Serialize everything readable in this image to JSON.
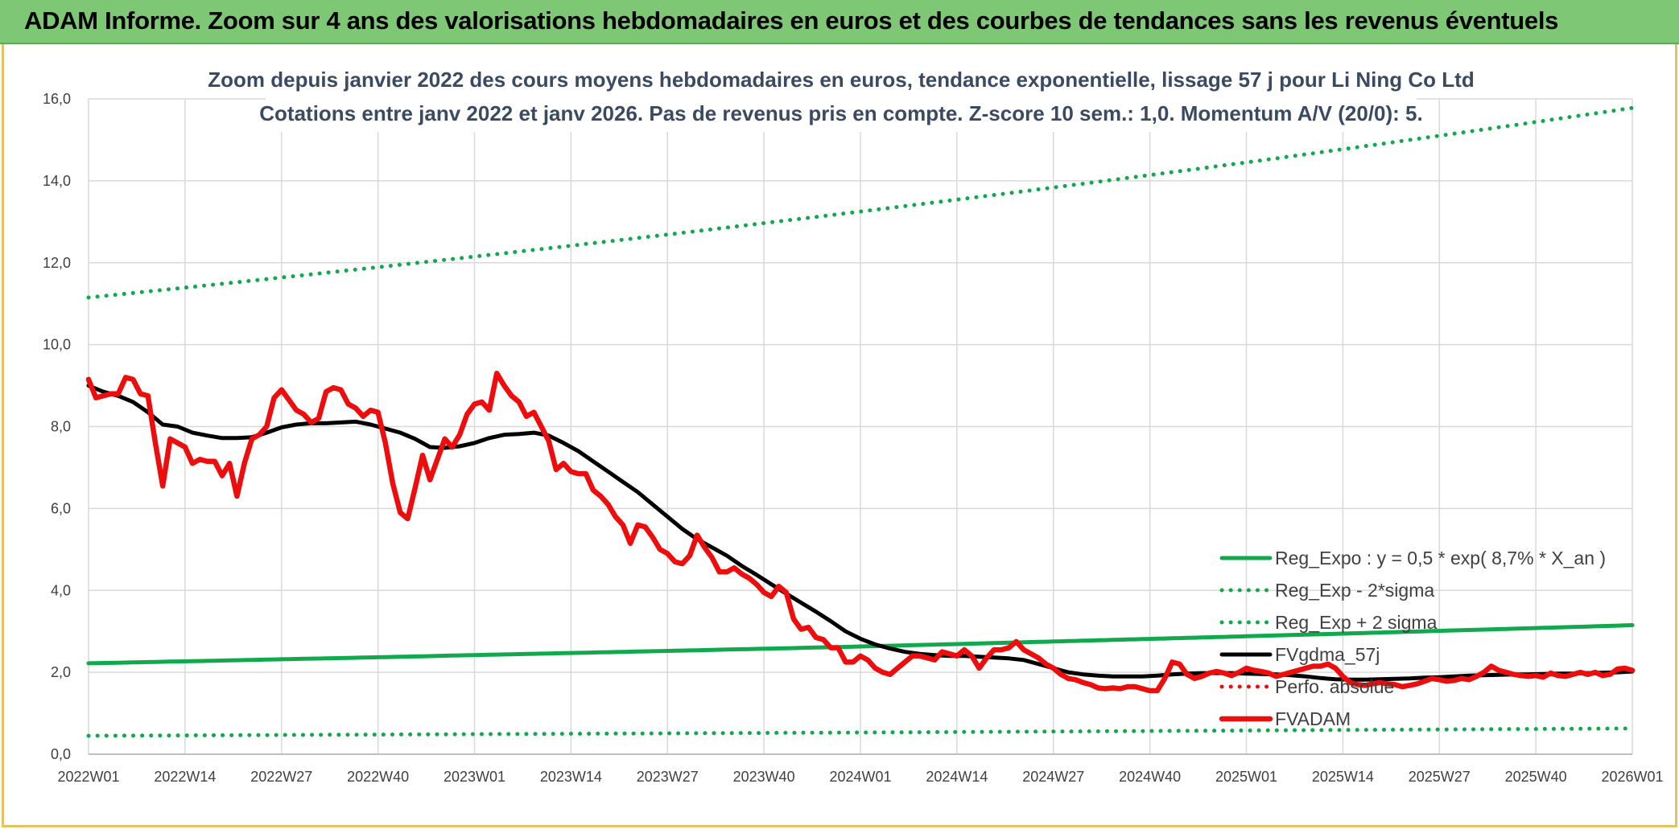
{
  "header": {
    "title": "ADAM Informe. Zoom sur 4 ans des valorisations hebdomadaires en euros et des courbes de tendances sans les revenus éventuels"
  },
  "colors": {
    "banner": "#7dc775",
    "frame": "#e4c262",
    "green": "#11a84e",
    "red": "#ee0d0d",
    "black": "#000000",
    "grid": "#d9d9d9"
  },
  "chart_data": {
    "type": "line",
    "title_line1": "Zoom depuis janvier 2022 des cours moyens hebdomadaires en euros, tendance exponentielle, lissage 57 j pour Li Ning Co Ltd",
    "title_line2": "Cotations entre janv 2022 et janv 2026. Pas de revenus pris en compte. Z-score 10 sem.: 1,0. Momentum A/V (20/0): 5.",
    "xlabel": "",
    "ylabel": "",
    "ylim": [
      0,
      16
    ],
    "yticks": [
      "0,0",
      "2,0",
      "4,0",
      "6,0",
      "8,0",
      "10,0",
      "12,0",
      "14,0",
      "16,0"
    ],
    "x_week_range": [
      0,
      208
    ],
    "x_tick_weeks": [
      0,
      13,
      26,
      39,
      52,
      65,
      78,
      91,
      104,
      117,
      130,
      143,
      156,
      169,
      182,
      195,
      208
    ],
    "x_tick_labels": [
      "2022W01",
      "2022W14",
      "2022W27",
      "2022W40",
      "2023W01",
      "2023W14",
      "2023W27",
      "2023W40",
      "2024W01",
      "2024W14",
      "2024W27",
      "2024W40",
      "2025W01",
      "2025W14",
      "2025W27",
      "2025W40",
      "2026W01"
    ],
    "legend": [
      {
        "label": "Reg_Expo : y = 0,5 * exp( 8,7% *  X_an )",
        "style": "solid",
        "color": "#11a84e"
      },
      {
        "label": "Reg_Exp - 2*sigma",
        "style": "dotted",
        "color": "#11a84e"
      },
      {
        "label": "Reg_Exp + 2 sigma",
        "style": "dotted",
        "color": "#11a84e"
      },
      {
        "label": "FVgdma_57j",
        "style": "solid",
        "color": "#000000"
      },
      {
        "label": "Perfo. absolue",
        "style": "dotted",
        "color": "#ee0d0d"
      },
      {
        "label": "FVADAM",
        "style": "solid-thick",
        "color": "#ee0d0d"
      }
    ],
    "series": [
      {
        "name": "Reg_Expo : y = 0,5 * exp( 8,7% *  X_an )",
        "style": "solid",
        "color": "#11a84e",
        "x": [
          0,
          52,
          104,
          156,
          208
        ],
        "values": [
          2.22,
          2.42,
          2.63,
          2.88,
          3.15
        ]
      },
      {
        "name": "Reg_Exp - 2*sigma",
        "style": "dotted",
        "color": "#11a84e",
        "x": [
          0,
          52,
          104,
          156,
          208
        ],
        "values": [
          0.45,
          0.49,
          0.53,
          0.58,
          0.63
        ]
      },
      {
        "name": "Reg_Exp + 2 sigma",
        "style": "dotted",
        "color": "#11a84e",
        "x": [
          0,
          52,
          104,
          156,
          208
        ],
        "values": [
          11.15,
          12.15,
          13.25,
          14.45,
          15.78
        ]
      },
      {
        "name": "FVgdma_57j",
        "style": "solid",
        "color": "#000000",
        "x": [
          0,
          2,
          4,
          6,
          8,
          10,
          12,
          14,
          16,
          18,
          20,
          22,
          24,
          26,
          28,
          30,
          32,
          34,
          36,
          38,
          40,
          42,
          44,
          46,
          48,
          50,
          52,
          54,
          56,
          58,
          60,
          62,
          64,
          66,
          68,
          70,
          72,
          74,
          76,
          78,
          80,
          82,
          84,
          86,
          88,
          90,
          92,
          94,
          96,
          98,
          100,
          102,
          104,
          106,
          108,
          110,
          112,
          114,
          116,
          118,
          120,
          122,
          124,
          126,
          128,
          130,
          132,
          134,
          136,
          138,
          140,
          142,
          144,
          146,
          148,
          150,
          152,
          154,
          156,
          158,
          160,
          162,
          164,
          166,
          168,
          170,
          172,
          174,
          176,
          178,
          180,
          182,
          184,
          186,
          188,
          190,
          192,
          194,
          196,
          198,
          200,
          202,
          204,
          206,
          208
        ],
        "values": [
          9.0,
          8.85,
          8.75,
          8.6,
          8.35,
          8.05,
          8.0,
          7.85,
          7.78,
          7.72,
          7.72,
          7.74,
          7.85,
          7.98,
          8.05,
          8.08,
          8.08,
          8.1,
          8.12,
          8.05,
          7.95,
          7.85,
          7.7,
          7.5,
          7.48,
          7.52,
          7.6,
          7.72,
          7.8,
          7.82,
          7.85,
          7.78,
          7.6,
          7.4,
          7.15,
          6.9,
          6.65,
          6.4,
          6.1,
          5.8,
          5.5,
          5.25,
          5.05,
          4.85,
          4.6,
          4.38,
          4.15,
          3.92,
          3.7,
          3.48,
          3.25,
          3.0,
          2.82,
          2.68,
          2.58,
          2.5,
          2.45,
          2.42,
          2.4,
          2.4,
          2.38,
          2.36,
          2.34,
          2.3,
          2.2,
          2.1,
          2.0,
          1.95,
          1.92,
          1.9,
          1.9,
          1.9,
          1.92,
          1.95,
          1.97,
          1.98,
          1.98,
          1.98,
          1.97,
          1.96,
          1.95,
          1.93,
          1.9,
          1.86,
          1.83,
          1.82,
          1.82,
          1.83,
          1.84,
          1.85,
          1.87,
          1.88,
          1.9,
          1.92,
          1.93,
          1.94,
          1.95,
          1.95,
          1.96,
          1.97,
          1.97,
          1.98,
          1.99,
          2.0,
          2.02
        ]
      },
      {
        "name": "FVADAM",
        "style": "solid-thick",
        "color": "#ee0d0d",
        "x": [
          0,
          1,
          2,
          3,
          4,
          5,
          6,
          7,
          8,
          9,
          10,
          11,
          12,
          13,
          14,
          15,
          16,
          17,
          18,
          19,
          20,
          21,
          22,
          23,
          24,
          25,
          26,
          27,
          28,
          29,
          30,
          31,
          32,
          33,
          34,
          35,
          36,
          37,
          38,
          39,
          40,
          41,
          42,
          43,
          44,
          45,
          46,
          47,
          48,
          49,
          50,
          51,
          52,
          53,
          54,
          55,
          56,
          57,
          58,
          59,
          60,
          61,
          62,
          63,
          64,
          65,
          66,
          67,
          68,
          69,
          70,
          71,
          72,
          73,
          74,
          75,
          76,
          77,
          78,
          79,
          80,
          81,
          82,
          83,
          84,
          85,
          86,
          87,
          88,
          89,
          90,
          91,
          92,
          93,
          94,
          95,
          96,
          97,
          98,
          99,
          100,
          101,
          102,
          103,
          104,
          105,
          106,
          107,
          108,
          109,
          110,
          111,
          112,
          113,
          114,
          115,
          116,
          117,
          118,
          119,
          120,
          121,
          122,
          123,
          124,
          125,
          126,
          127,
          128,
          129,
          130,
          131,
          132,
          133,
          134,
          135,
          136,
          137,
          138,
          139,
          140,
          141,
          142,
          143,
          144,
          145,
          146,
          147,
          148,
          149,
          150,
          151,
          152,
          153,
          154,
          155,
          156,
          157,
          158,
          159,
          160,
          161,
          162,
          163,
          164,
          165,
          166,
          167,
          168,
          169,
          170,
          171,
          172,
          173,
          174,
          175,
          176,
          177,
          178,
          179,
          180,
          181,
          182,
          183,
          184,
          185,
          186,
          187,
          188,
          189,
          190,
          191,
          192,
          193,
          194,
          195,
          196,
          197,
          198,
          199,
          200,
          201,
          202,
          203,
          204,
          205,
          206,
          207,
          208
        ],
        "values": [
          9.15,
          8.7,
          8.75,
          8.8,
          8.8,
          9.2,
          9.15,
          8.8,
          8.75,
          7.6,
          6.55,
          7.7,
          7.6,
          7.5,
          7.1,
          7.2,
          7.15,
          7.15,
          6.8,
          7.1,
          6.3,
          7.1,
          7.7,
          7.8,
          8.0,
          8.7,
          8.9,
          8.65,
          8.4,
          8.3,
          8.1,
          8.2,
          8.85,
          8.95,
          8.9,
          8.55,
          8.45,
          8.25,
          8.4,
          8.35,
          7.6,
          6.6,
          5.9,
          5.75,
          6.5,
          7.3,
          6.7,
          7.2,
          7.7,
          7.5,
          7.8,
          8.3,
          8.55,
          8.6,
          8.4,
          9.3,
          9.0,
          8.75,
          8.6,
          8.25,
          8.35,
          8.0,
          7.65,
          6.95,
          7.1,
          6.9,
          6.85,
          6.85,
          6.45,
          6.3,
          6.1,
          5.8,
          5.6,
          5.15,
          5.6,
          5.55,
          5.3,
          5.0,
          4.9,
          4.7,
          4.65,
          4.85,
          5.35,
          5.05,
          4.8,
          4.45,
          4.45,
          4.55,
          4.4,
          4.3,
          4.15,
          3.95,
          3.85,
          4.1,
          3.95,
          3.3,
          3.05,
          3.1,
          2.85,
          2.8,
          2.6,
          2.6,
          2.25,
          2.25,
          2.4,
          2.3,
          2.1,
          2.0,
          1.95,
          2.1,
          2.25,
          2.4,
          2.4,
          2.35,
          2.3,
          2.5,
          2.45,
          2.4,
          2.55,
          2.4,
          2.1,
          2.35,
          2.55,
          2.55,
          2.6,
          2.75,
          2.55,
          2.45,
          2.35,
          2.2,
          2.1,
          1.95,
          1.85,
          1.82,
          1.75,
          1.7,
          1.62,
          1.6,
          1.62,
          1.6,
          1.65,
          1.65,
          1.6,
          1.55,
          1.55,
          1.85,
          2.25,
          2.2,
          1.95,
          1.85,
          1.9,
          1.98,
          2.02,
          1.98,
          1.92,
          2.0,
          2.1,
          2.05,
          2.02,
          1.98,
          1.9,
          1.95,
          2.0,
          2.05,
          2.1,
          2.15,
          2.15,
          2.2,
          2.1,
          1.9,
          1.75,
          1.7,
          1.68,
          1.72,
          1.75,
          1.72,
          1.7,
          1.65,
          1.68,
          1.72,
          1.78,
          1.85,
          1.82,
          1.78,
          1.8,
          1.85,
          1.82,
          1.9,
          2.0,
          2.15,
          2.05,
          2.0,
          1.95,
          1.92,
          1.9,
          1.92,
          1.88,
          1.98,
          1.92,
          1.9,
          1.95,
          2.0,
          1.95,
          2.0,
          1.92,
          1.95,
          2.08,
          2.1,
          2.05
        ]
      }
    ]
  }
}
